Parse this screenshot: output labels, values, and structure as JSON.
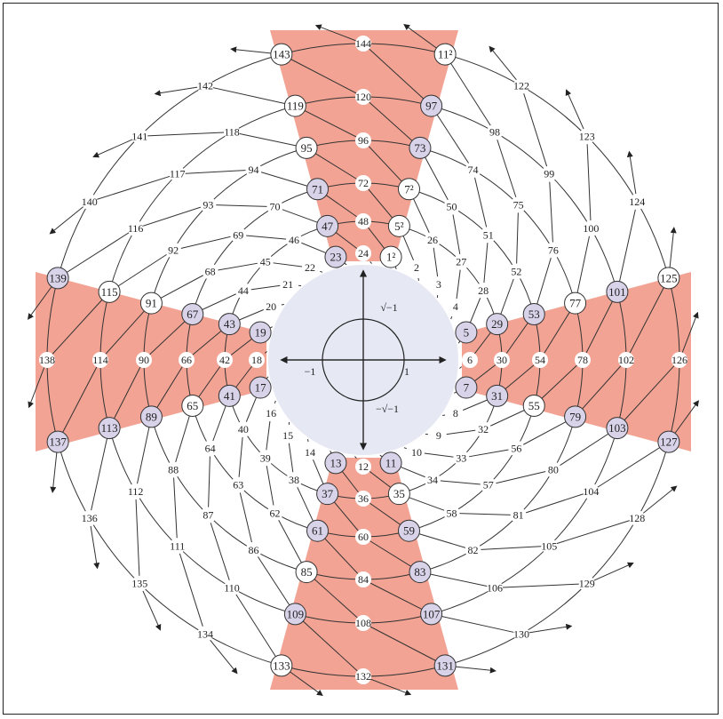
{
  "colors": {
    "arm_fill": "#f2a393",
    "hub_fill": "#e6e8f4",
    "prime_fill": "#d9d3ea",
    "plain_fill": "#ffffff",
    "line": "#333333"
  },
  "diagram": {
    "center_labels": {
      "pos_i": "√−1",
      "neg_i": "−√−1",
      "neg_one": "−1",
      "one": "1"
    },
    "rings": [
      [
        "6",
        "5",
        "4",
        "3",
        "2",
        "1²",
        "24",
        "23",
        "22",
        "21",
        "20",
        "19",
        "18",
        "17",
        "16",
        "15",
        "14",
        "13",
        "12",
        "11",
        "10",
        "9",
        "8",
        "7"
      ],
      [
        "30",
        "29",
        "28",
        "27",
        "26",
        "5²",
        "48",
        "47",
        "46",
        "45",
        "44",
        "43",
        "42",
        "41",
        "40",
        "39",
        "38",
        "37",
        "36",
        "35",
        "34",
        "33",
        "32",
        "31"
      ],
      [
        "54",
        "53",
        "52",
        "51",
        "50",
        "7²",
        "72",
        "71",
        "70",
        "69",
        "68",
        "67",
        "66",
        "65",
        "64",
        "63",
        "62",
        "61",
        "60",
        "59",
        "58",
        "57",
        "56",
        "55"
      ],
      [
        "78",
        "77",
        "76",
        "75",
        "74",
        "73",
        "96",
        "95",
        "94",
        "93",
        "92",
        "91",
        "90",
        "89",
        "88",
        "87",
        "86",
        "85",
        "84",
        "83",
        "82",
        "81",
        "80",
        "79"
      ],
      [
        "102",
        "101",
        "100",
        "99",
        "98",
        "97",
        "120",
        "119",
        "118",
        "117",
        "116",
        "115",
        "114",
        "113",
        "112",
        "111",
        "110",
        "109",
        "108",
        "107",
        "106",
        "105",
        "104",
        "103"
      ],
      [
        "126",
        "125",
        "124",
        "123",
        "122",
        "11²",
        "144",
        "143",
        "142",
        "141",
        "140",
        "139",
        "138",
        "137",
        "136",
        "135",
        "134",
        "133",
        "132",
        "131",
        "130",
        "129",
        "128",
        "127"
      ]
    ],
    "primes": [
      "5",
      "7",
      "11",
      "13",
      "17",
      "19",
      "23",
      "29",
      "31",
      "37",
      "41",
      "43",
      "47",
      "53",
      "59",
      "61",
      "67",
      "71",
      "73",
      "79",
      "83",
      "89",
      "97",
      "101",
      "103",
      "107",
      "109",
      "113",
      "127",
      "131",
      "137",
      "139"
    ],
    "white_circled": [
      "1²",
      "5²",
      "7²",
      "35",
      "55",
      "65",
      "77",
      "85",
      "91",
      "95",
      "115",
      "119",
      "121",
      "125",
      "133",
      "143",
      "11²"
    ]
  }
}
